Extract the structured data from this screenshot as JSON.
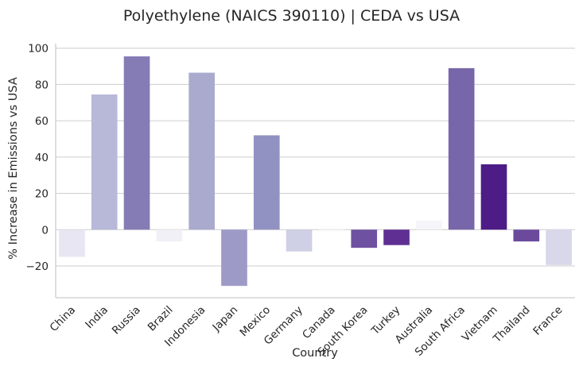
{
  "chart_data": {
    "type": "bar",
    "title": "Polyethylene (NAICS 390110) | CEDA vs USA",
    "xlabel": "Country",
    "ylabel": "% Increase in Emissions vs USA",
    "categories": [
      "China",
      "India",
      "Russia",
      "Brazil",
      "Indonesia",
      "Japan",
      "Mexico",
      "Germany",
      "Canada",
      "South Korea",
      "Turkey",
      "Australia",
      "South Africa",
      "Vietnam",
      "Thailand",
      "France"
    ],
    "values": [
      -15,
      74.5,
      95.5,
      -6.5,
      86.5,
      -31,
      52,
      -12,
      -1,
      -10,
      -8.5,
      5,
      89,
      36,
      -6.5,
      -19.5
    ],
    "colors": [
      "#e7e6f2",
      "#b8b8d9",
      "#857cb6",
      "#f1f0f7",
      "#aaaace",
      "#9e9ac8",
      "#9191c2",
      "#cfcfe6",
      "#fafafd",
      "#6f51a1",
      "#5f2f93",
      "#f5f5fa",
      "#7766a9",
      "#4d1c86",
      "#6b4a9c",
      "#d8d8ea"
    ],
    "ylim": [
      -37.5,
      102.5
    ],
    "yticks": [
      -20,
      0,
      20,
      40,
      60,
      80,
      100
    ],
    "grid": true,
    "colors_theme": {
      "grid": "#cccccc",
      "axis": "#cccccc",
      "text": "#262626"
    }
  }
}
